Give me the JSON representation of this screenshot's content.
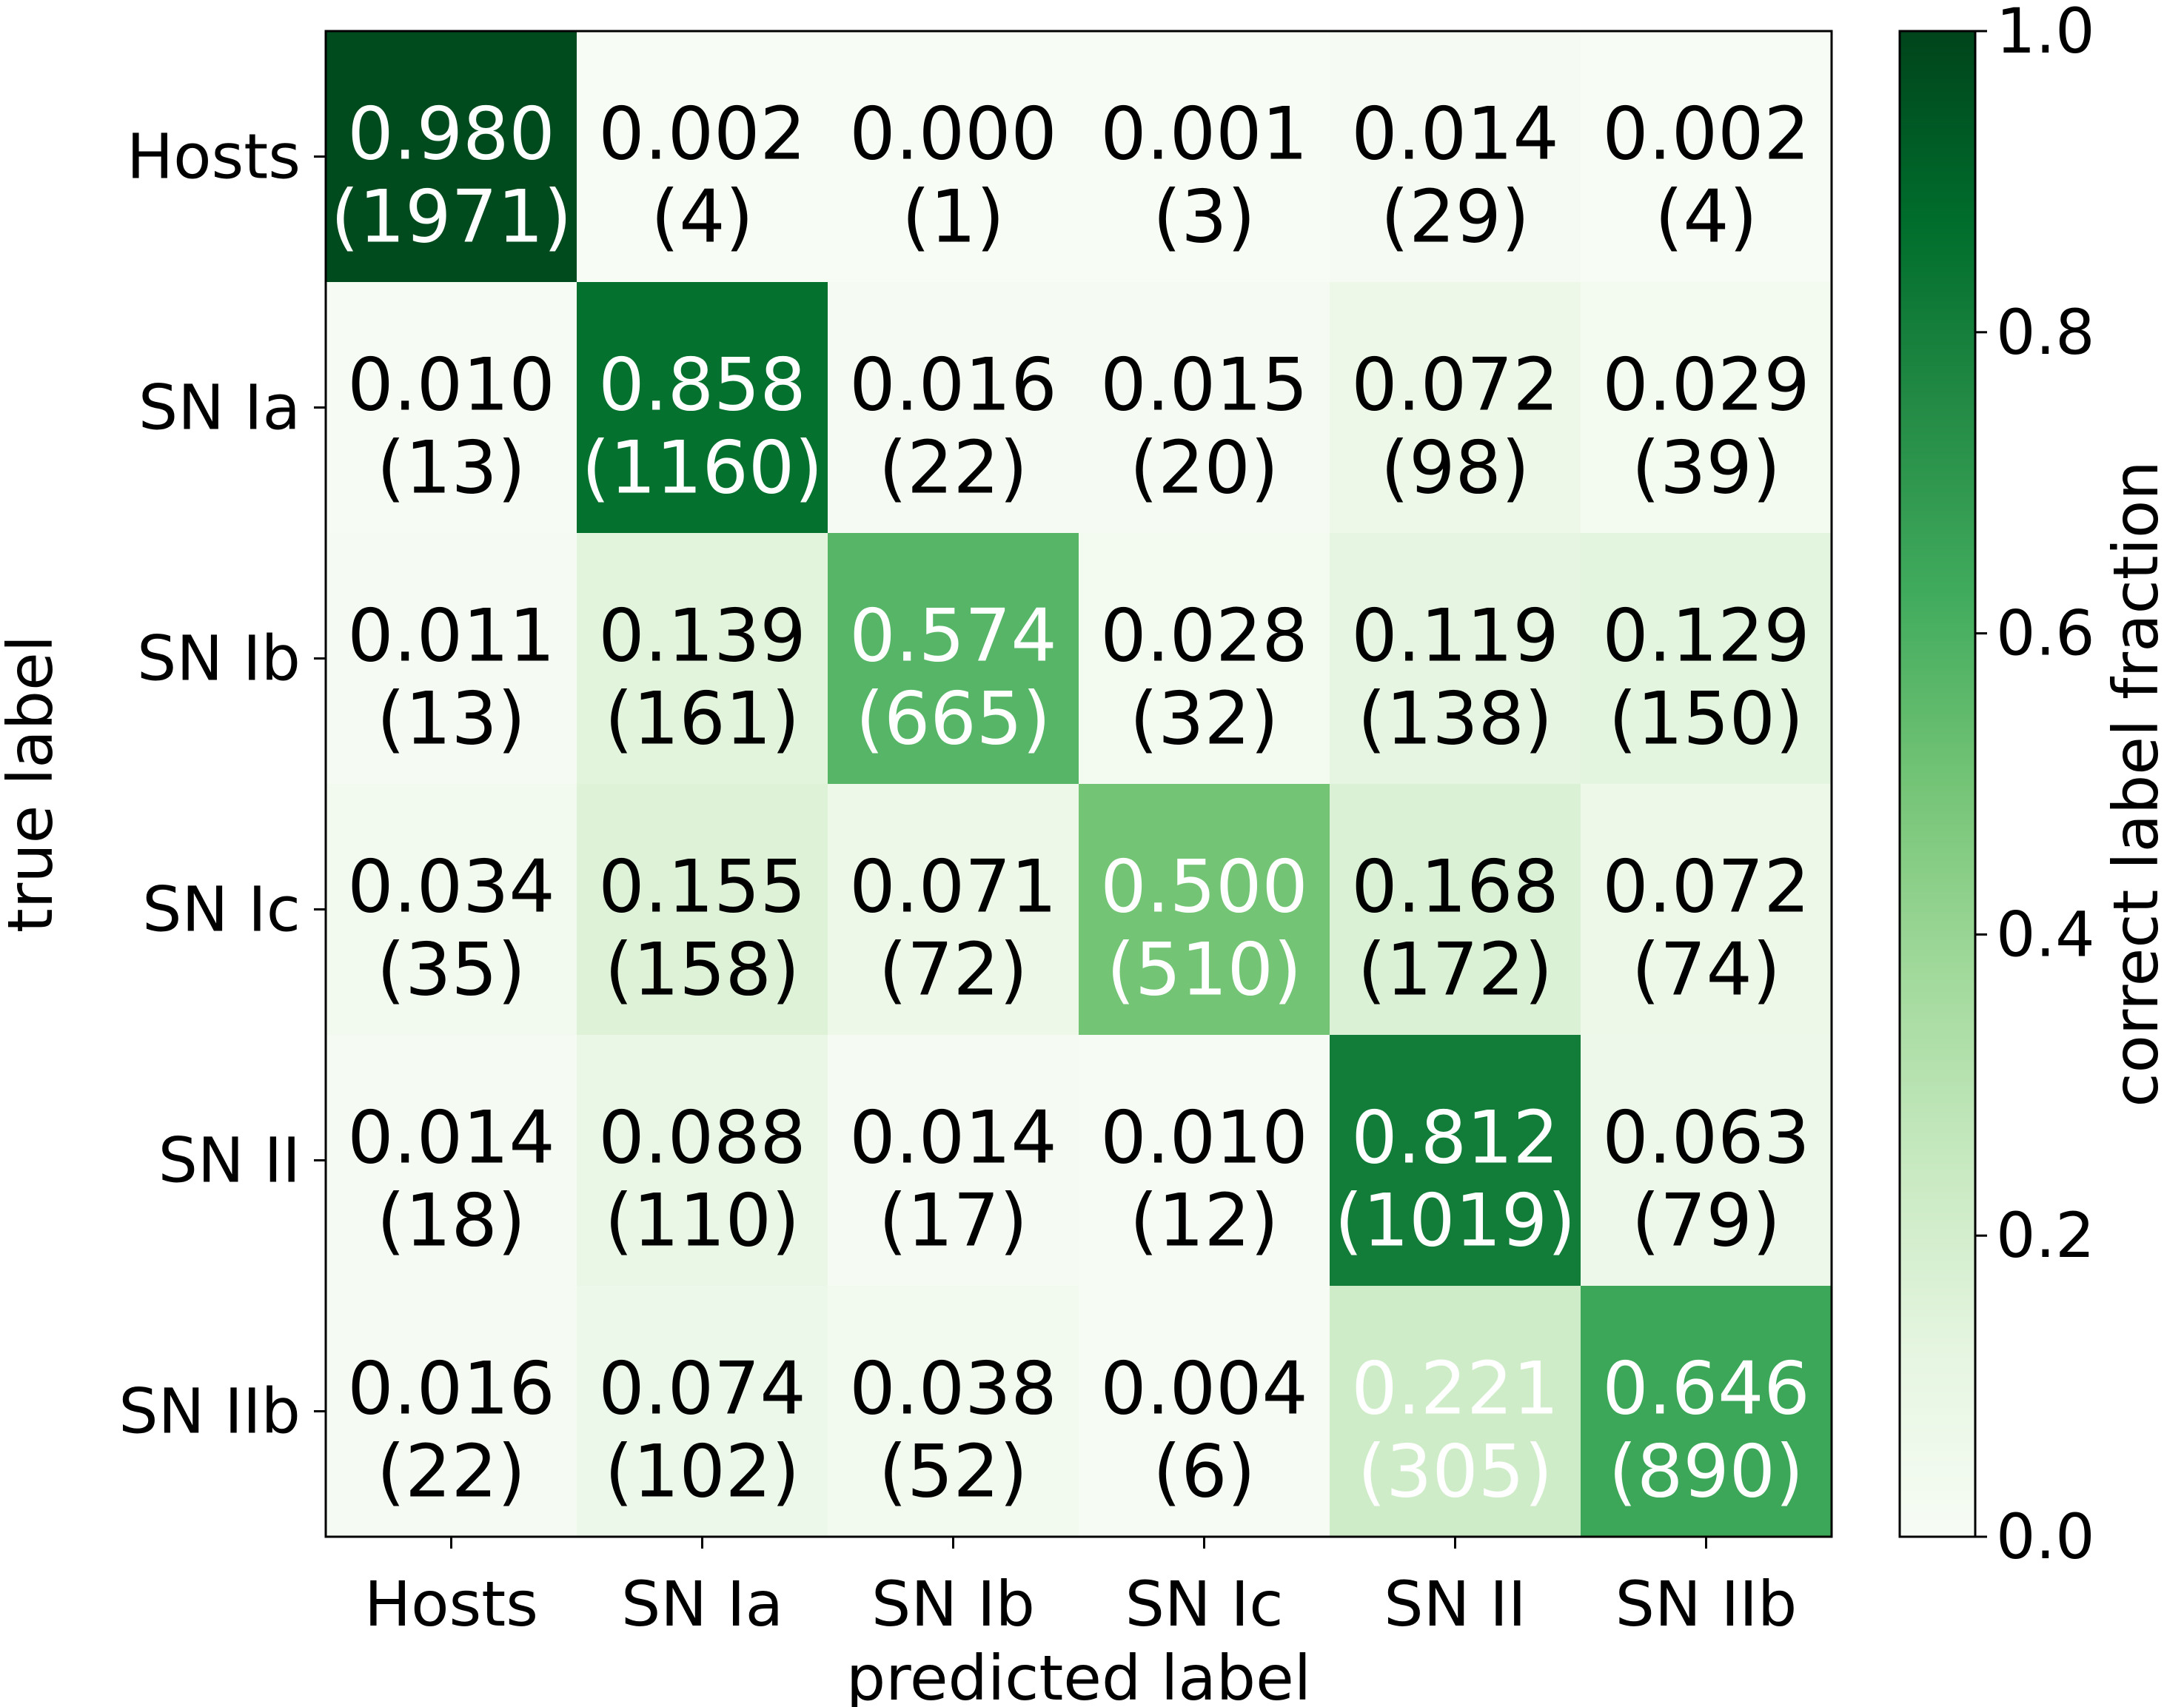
{
  "chart_data": {
    "type": "heatmap",
    "title": "",
    "xlabel": "predicted label",
    "ylabel": "true label",
    "x_categories": [
      "Hosts",
      "SN Ia",
      "SN Ib",
      "SN Ic",
      "SN II",
      "SN IIb"
    ],
    "y_categories": [
      "Hosts",
      "SN Ia",
      "SN Ib",
      "SN Ic",
      "SN II",
      "SN IIb"
    ],
    "fractions": [
      [
        0.98,
        0.002,
        0.0,
        0.001,
        0.014,
        0.002
      ],
      [
        0.01,
        0.858,
        0.016,
        0.015,
        0.072,
        0.029
      ],
      [
        0.011,
        0.139,
        0.574,
        0.028,
        0.119,
        0.129
      ],
      [
        0.034,
        0.155,
        0.071,
        0.5,
        0.168,
        0.072
      ],
      [
        0.014,
        0.088,
        0.014,
        0.01,
        0.812,
        0.063
      ],
      [
        0.016,
        0.074,
        0.038,
        0.004,
        0.221,
        0.646
      ]
    ],
    "fraction_labels": [
      [
        "0.980",
        "0.002",
        "0.000",
        "0.001",
        "0.014",
        "0.002"
      ],
      [
        "0.010",
        "0.858",
        "0.016",
        "0.015",
        "0.072",
        "0.029"
      ],
      [
        "0.011",
        "0.139",
        "0.574",
        "0.028",
        "0.119",
        "0.129"
      ],
      [
        "0.034",
        "0.155",
        "0.071",
        "0.500",
        "0.168",
        "0.072"
      ],
      [
        "0.014",
        "0.088",
        "0.014",
        "0.010",
        "0.812",
        "0.063"
      ],
      [
        "0.016",
        "0.074",
        "0.038",
        "0.004",
        "0.221",
        "0.646"
      ]
    ],
    "counts": [
      [
        "(1971)",
        "(4)",
        "(1)",
        "(3)",
        "(29)",
        "(4)"
      ],
      [
        "(13)",
        "(1160)",
        "(22)",
        "(20)",
        "(98)",
        "(39)"
      ],
      [
        "(13)",
        "(161)",
        "(665)",
        "(32)",
        "(138)",
        "(150)"
      ],
      [
        "(35)",
        "(158)",
        "(72)",
        "(510)",
        "(172)",
        "(74)"
      ],
      [
        "(18)",
        "(110)",
        "(17)",
        "(12)",
        "(1019)",
        "(79)"
      ],
      [
        "(22)",
        "(102)",
        "(52)",
        "(6)",
        "(305)",
        "(890)"
      ]
    ],
    "colorbar": {
      "label": "correct label fraction",
      "range": [
        0.0,
        1.0
      ],
      "ticks": [
        0.0,
        0.2,
        0.4,
        0.6,
        0.8,
        1.0
      ],
      "tick_labels": [
        "0.0",
        "0.2",
        "0.4",
        "0.6",
        "0.8",
        "1.0"
      ],
      "colormap": "Greens",
      "color_stops": [
        "#f7fcf5",
        "#e5f5e0",
        "#c7e9c0",
        "#a1d99b",
        "#74c476",
        "#41ab5d",
        "#238b45",
        "#006d2c",
        "#00441b"
      ]
    },
    "text_colors": {
      "dark": "#000000",
      "light": "#ffffff"
    },
    "text_color_threshold": 0.2
  }
}
